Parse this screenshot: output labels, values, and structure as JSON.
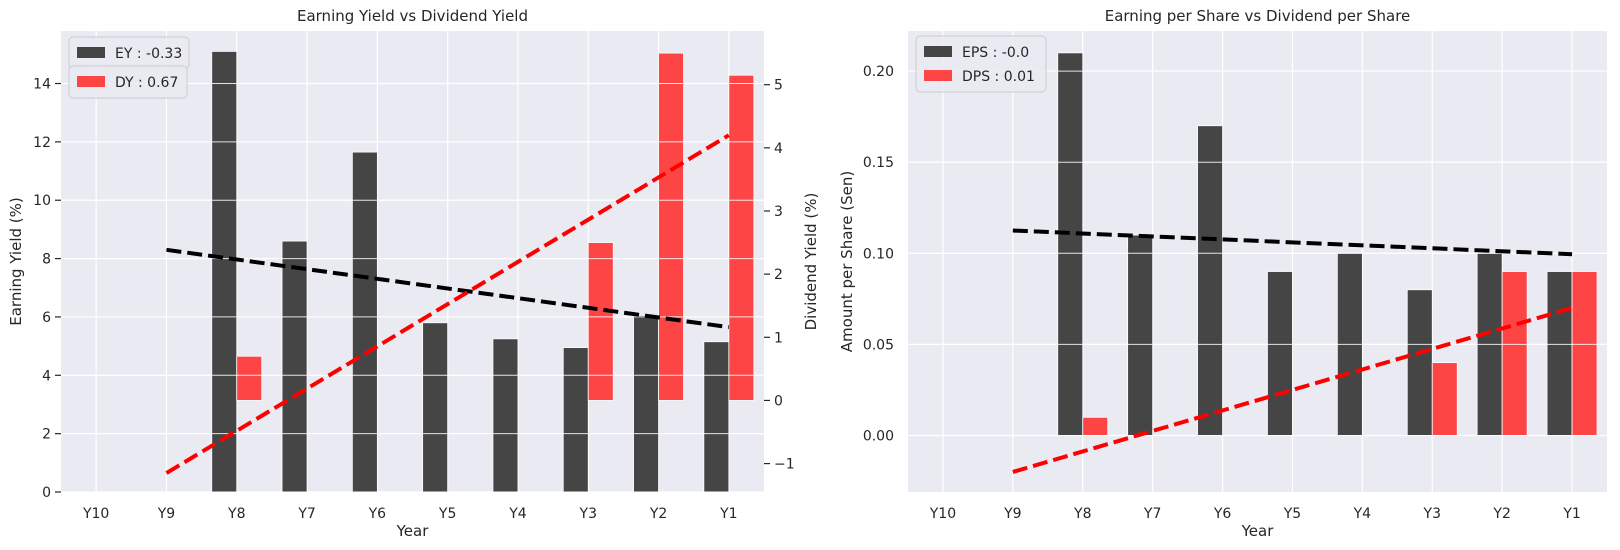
{
  "chart_data": [
    {
      "type": "bar",
      "title": "Earning Yield vs Dividend Yield",
      "xlabel": "Year",
      "ylabel": "Earning Yield (%)",
      "ylabel_right": "Dividend Yield (%)",
      "categories": [
        "Y10",
        "Y9",
        "Y8",
        "Y7",
        "Y6",
        "Y5",
        "Y4",
        "Y3",
        "Y2",
        "Y1"
      ],
      "ylim": [
        0,
        15.8
      ],
      "ylim_right": [
        -1.45,
        5.85
      ],
      "yticks": [
        0,
        2,
        4,
        6,
        8,
        10,
        12,
        14
      ],
      "yticks_right": [
        -1,
        0,
        1,
        2,
        3,
        4,
        5
      ],
      "grid": true,
      "legend_position": "top-left",
      "series": [
        {
          "name": "EY : -0.33",
          "axis": "left",
          "color": "#333333",
          "values": [
            null,
            null,
            15.1,
            8.6,
            11.65,
            5.8,
            5.25,
            4.95,
            6.05,
            5.15
          ]
        },
        {
          "name": "DY : 0.67",
          "axis": "right",
          "color": "#ff3333",
          "values": [
            null,
            null,
            0.7,
            null,
            null,
            null,
            null,
            2.5,
            5.5,
            5.15
          ]
        }
      ],
      "trendlines": [
        {
          "axis": "left",
          "color": "#000000",
          "from": {
            "x": "Y9",
            "y": 8.3
          },
          "to": {
            "x": "Y1",
            "y": 5.65
          }
        },
        {
          "axis": "right",
          "color": "#ff0000",
          "from": {
            "x": "Y9",
            "y": -1.15
          },
          "to": {
            "x": "Y1",
            "y": 4.2
          }
        }
      ]
    },
    {
      "type": "bar",
      "title": "Earning per Share vs Dividend per Share",
      "xlabel": "Year",
      "ylabel": "Amount per Share (Sen)",
      "categories": [
        "Y10",
        "Y9",
        "Y8",
        "Y7",
        "Y6",
        "Y5",
        "Y4",
        "Y3",
        "Y2",
        "Y1"
      ],
      "ylim": [
        -0.031,
        0.222
      ],
      "yticks": [
        0.0,
        0.05,
        0.1,
        0.15,
        0.2
      ],
      "ytick_labels": [
        "0.00",
        "0.05",
        "0.10",
        "0.15",
        "0.20"
      ],
      "grid": true,
      "legend_position": "top-left",
      "series": [
        {
          "name": "EPS : -0.0",
          "color": "#333333",
          "values": [
            null,
            null,
            0.21,
            0.11,
            0.17,
            0.09,
            0.1,
            0.08,
            0.1,
            0.09
          ]
        },
        {
          "name": "DPS : 0.01",
          "color": "#ff3333",
          "values": [
            null,
            null,
            0.01,
            null,
            null,
            null,
            null,
            0.04,
            0.09,
            0.09
          ]
        }
      ],
      "trendlines": [
        {
          "color": "#000000",
          "from": {
            "x": "Y9",
            "y": 0.1125
          },
          "to": {
            "x": "Y1",
            "y": 0.0995
          }
        },
        {
          "color": "#ff0000",
          "from": {
            "x": "Y9",
            "y": -0.02
          },
          "to": {
            "x": "Y1",
            "y": 0.07
          }
        }
      ]
    }
  ]
}
